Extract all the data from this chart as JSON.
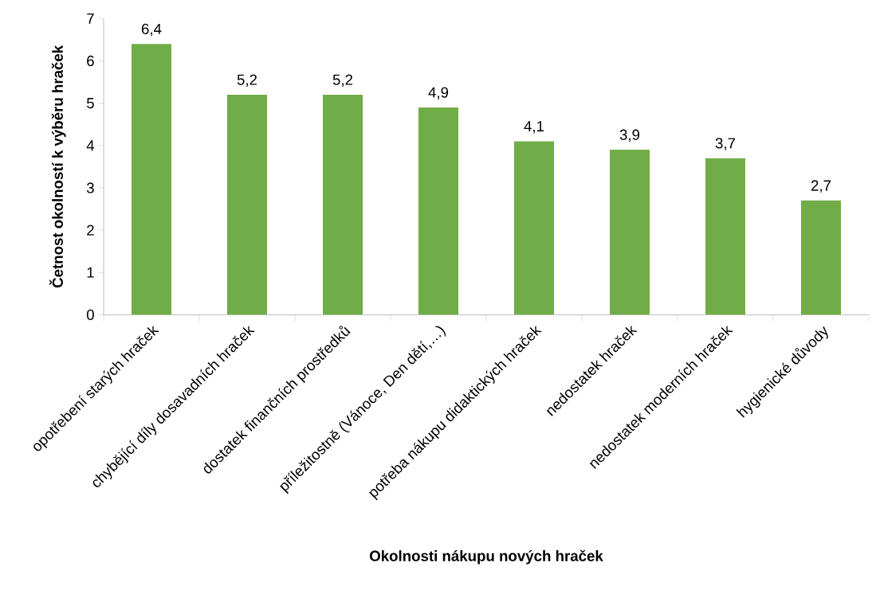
{
  "chart_data": {
    "type": "bar",
    "xlabel": "Okolnosti nákupu nových hraček",
    "ylabel": "Četnost okolností k výběru hraček",
    "categories": [
      "opotřebení starých hraček",
      "chybějící díly dosavadních hraček",
      "dostatek finančních prostředků",
      "příležitostně (Vánoce, Den dětí,…)",
      "potřeba nákupu didaktických hraček",
      "nedostatek hraček",
      "nedostatek moderních hraček",
      "hygienické důvody"
    ],
    "values": [
      6.4,
      5.2,
      5.2,
      4.9,
      4.1,
      3.9,
      3.7,
      2.7
    ],
    "value_labels": [
      "6,4",
      "5,2",
      "5,2",
      "4,9",
      "4,1",
      "3,9",
      "3,7",
      "2,7"
    ],
    "color": "#70ad47",
    "ylim": [
      0,
      7
    ],
    "yticks": [
      0,
      1,
      2,
      3,
      4,
      5,
      6,
      7
    ],
    "grid": false
  }
}
